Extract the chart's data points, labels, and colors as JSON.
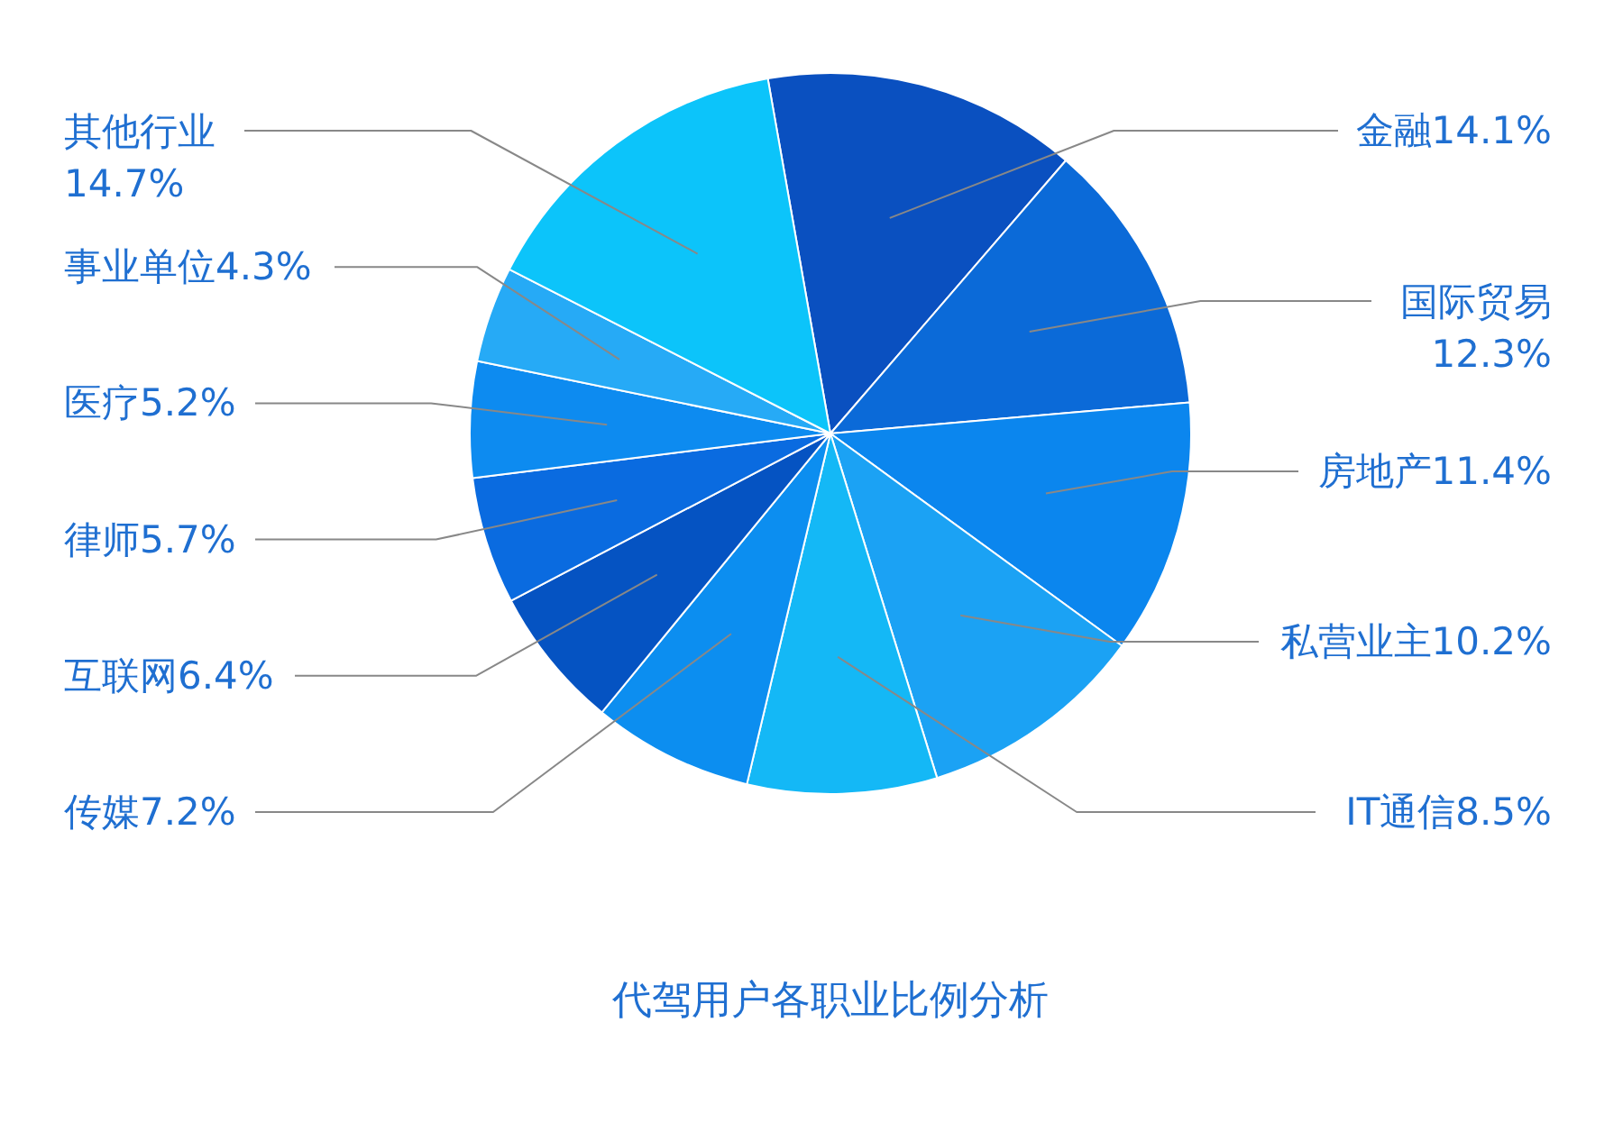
{
  "chart_data": {
    "type": "pie",
    "title": "代驾用户各职业比例分析",
    "categories": [
      "金融",
      "国际贸易",
      "房地产",
      "私营业主",
      "IT通信",
      "传媒",
      "互联网",
      "律师",
      "医疗",
      "事业单位",
      "其他行业"
    ],
    "values": [
      14.1,
      12.3,
      11.4,
      10.2,
      8.5,
      7.2,
      6.4,
      5.7,
      5.2,
      4.3,
      14.7
    ],
    "value_labels": [
      "14.1%",
      "12.3%",
      "11.4%",
      "10.2%",
      "8.5%",
      "7.2%",
      "6.4%",
      "5.7%",
      "5.2%",
      "4.3%",
      "14.7%"
    ],
    "colors": [
      "#0a50c0",
      "#0b6ad8",
      "#0b86ee",
      "#1ba2f4",
      "#14b8f6",
      "#0c8ef0",
      "#0553c2",
      "#0a6be0",
      "#0d8bf0",
      "#26aaf6",
      "#0cc4fa"
    ]
  }
}
